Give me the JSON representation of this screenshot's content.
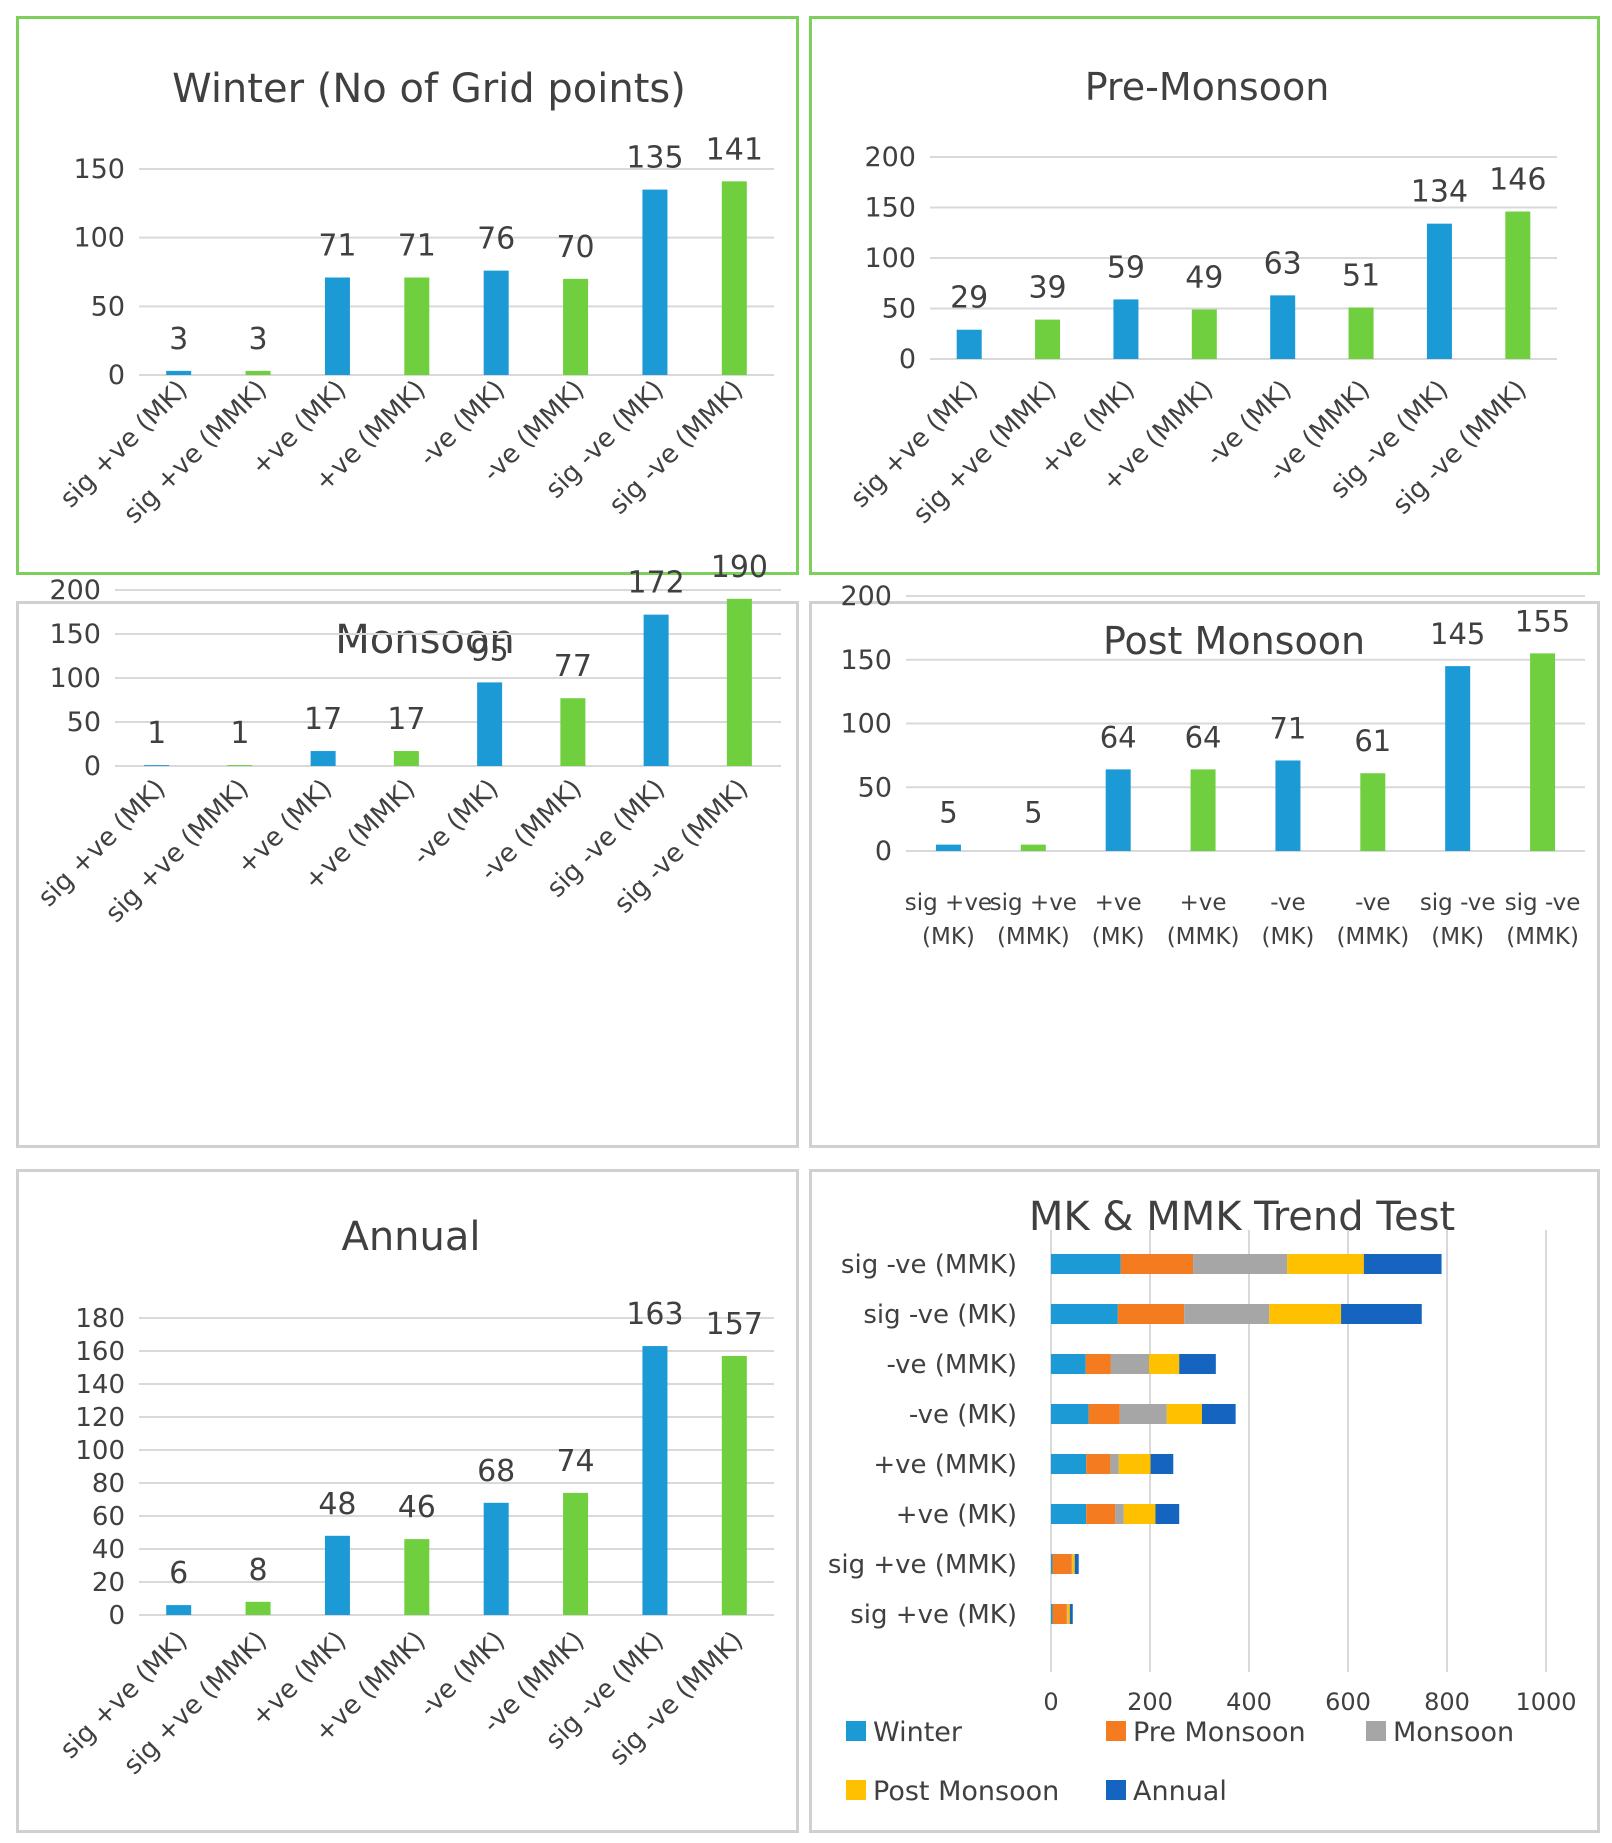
{
  "colors": {
    "mk": "#1b9ad6",
    "mmk": "#6fcf3f",
    "border_green": "#7ccf5a",
    "border_gray": "#d0d0d0",
    "winter": "#1b9ad6",
    "pre_monsoon": "#f47b20",
    "monsoon": "#a6a6a6",
    "post_monsoon": "#ffc000",
    "annual": "#1565c0"
  },
  "chart_data": [
    {
      "id": "winter",
      "type": "bar",
      "title": "Winter (No of Grid points)",
      "categories": [
        "sig +ve (MK)",
        "sig +ve (MMK)",
        "+ve (MK)",
        "+ve (MMK)",
        "-ve (MK)",
        "-ve (MMK)",
        "sig -ve (MK)",
        "sig -ve (MMK)"
      ],
      "values": [
        3,
        3,
        71,
        71,
        76,
        70,
        135,
        141
      ],
      "ylim": [
        0,
        150
      ],
      "yticks": [
        "0",
        "50",
        "100",
        "150"
      ],
      "label_style": "rotated"
    },
    {
      "id": "pre_monsoon",
      "type": "bar",
      "title": "Pre-Monsoon",
      "categories": [
        "sig +ve (MK)",
        "sig +ve (MMK)",
        "+ve (MK)",
        "+ve (MMK)",
        "-ve (MK)",
        "-ve (MMK)",
        "sig -ve (MK)",
        "sig -ve (MMK)"
      ],
      "values": [
        29,
        39,
        59,
        49,
        63,
        51,
        134,
        146
      ],
      "ylim": [
        0,
        200
      ],
      "yticks": [
        "0",
        "50",
        "100",
        "150",
        "200"
      ],
      "label_style": "rotated"
    },
    {
      "id": "monsoon",
      "type": "bar",
      "title": "Monsoon",
      "categories": [
        "sig +ve (MK)",
        "sig +ve (MMK)",
        "+ve (MK)",
        "+ve (MMK)",
        "-ve (MK)",
        "-ve (MMK)",
        "sig -ve (MK)",
        "sig -ve (MMK)"
      ],
      "values": [
        1,
        1,
        17,
        17,
        95,
        77,
        172,
        190
      ],
      "ylim": [
        0,
        200
      ],
      "yticks": [
        "0",
        "50",
        "100",
        "150",
        "200"
      ],
      "label_style": "rotated"
    },
    {
      "id": "post_monsoon",
      "type": "bar",
      "title": "Post Monsoon",
      "categories": [
        "sig +ve (MK)",
        "sig +ve (MMK)",
        "+ve (MK)",
        "+ve (MMK)",
        "-ve (MK)",
        "-ve (MMK)",
        "sig -ve (MK)",
        "sig -ve (MMK)"
      ],
      "values": [
        5,
        5,
        64,
        64,
        71,
        61,
        145,
        155
      ],
      "ylim": [
        0,
        200
      ],
      "yticks": [
        "0",
        "50",
        "100",
        "150",
        "200"
      ],
      "label_style": "wrapped"
    },
    {
      "id": "annual",
      "type": "bar",
      "title": "Annual",
      "categories": [
        "sig +ve (MK)",
        "sig +ve (MMK)",
        "+ve (MK)",
        "+ve (MMK)",
        "-ve (MK)",
        "-ve (MMK)",
        "sig -ve (MK)",
        "sig -ve (MMK)"
      ],
      "values": [
        6,
        8,
        48,
        46,
        68,
        74,
        163,
        157
      ],
      "ylim": [
        0,
        180
      ],
      "yticks": [
        "0",
        "20",
        "40",
        "60",
        "80",
        "100",
        "120",
        "140",
        "160",
        "180"
      ],
      "label_style": "rotated"
    },
    {
      "id": "mk_mmk",
      "type": "bar",
      "orientation": "horizontal",
      "stacked": true,
      "title": "MK & MMK Trend Test",
      "categories": [
        "sig -ve (MMK)",
        "sig -ve (MK)",
        "-ve (MMK)",
        "-ve (MK)",
        "+ve (MMK)",
        "+ve (MK)",
        "sig +ve (MMK)",
        "sig +ve (MK)"
      ],
      "xlim": [
        0,
        1000
      ],
      "xticks": [
        "0",
        "200",
        "400",
        "600",
        "800",
        "1000"
      ],
      "series": [
        {
          "name": "Winter",
          "color_key": "winter",
          "values": [
            141,
            135,
            70,
            76,
            71,
            71,
            3,
            3
          ]
        },
        {
          "name": "Pre Monsoon",
          "color_key": "pre_monsoon",
          "values": [
            146,
            134,
            51,
            63,
            49,
            59,
            39,
            29
          ]
        },
        {
          "name": "Monsoon",
          "color_key": "monsoon",
          "values": [
            190,
            172,
            77,
            95,
            17,
            17,
            1,
            1
          ]
        },
        {
          "name": "Post Monsoon",
          "color_key": "post_monsoon",
          "values": [
            155,
            145,
            61,
            71,
            64,
            64,
            5,
            5
          ]
        },
        {
          "name": "Annual",
          "color_key": "annual",
          "values": [
            157,
            163,
            74,
            68,
            46,
            48,
            8,
            6
          ]
        }
      ],
      "legend_position": "bottom"
    }
  ]
}
